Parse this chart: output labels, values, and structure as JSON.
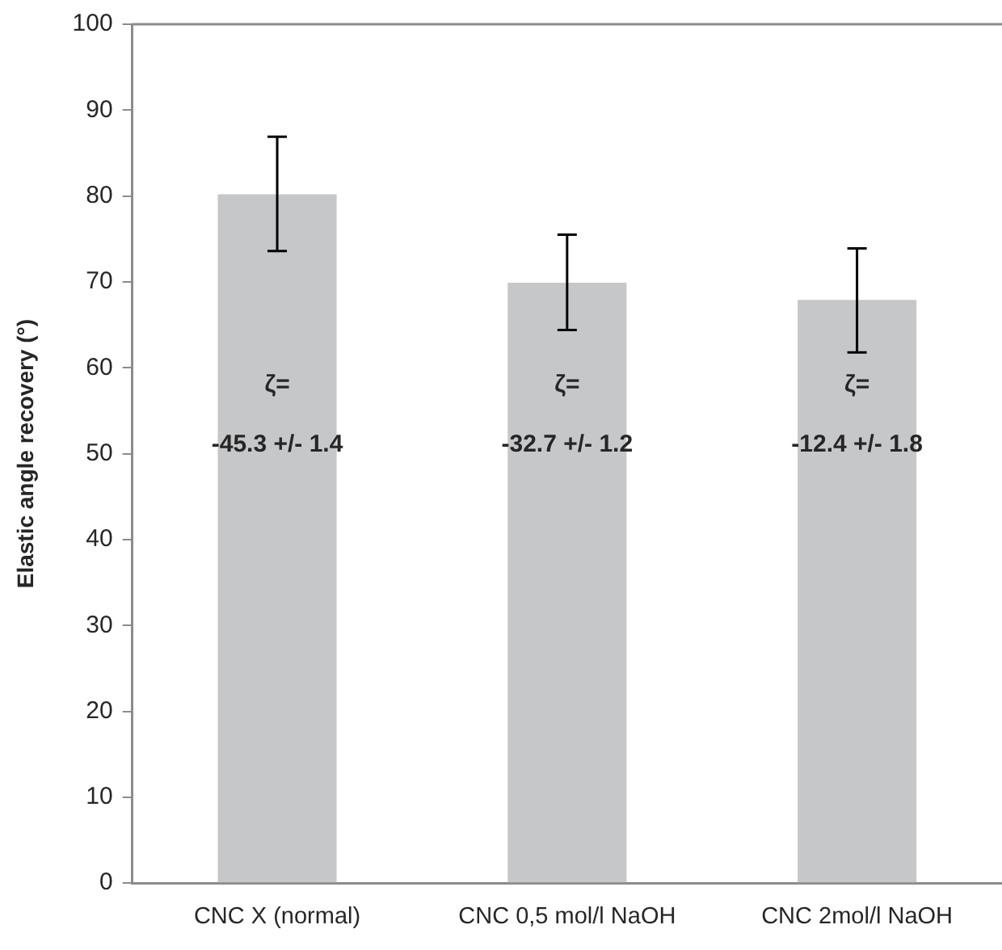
{
  "chart_data": {
    "type": "bar",
    "ylabel": "Elastic angle recovery (°)",
    "categories": [
      "CNC X (normal)",
      "CNC 0,5 mol/l NaOH",
      "CNC 2mol/l NaOH"
    ],
    "values": [
      80.2,
      69.9,
      67.9
    ],
    "color": "#c6c7c9",
    "errors": [
      [
        73.6,
        86.9
      ],
      [
        64.4,
        75.5
      ],
      [
        61.8,
        73.9
      ]
    ],
    "ylim": [
      0,
      100
    ],
    "yticks": [
      0,
      10,
      20,
      30,
      40,
      50,
      60,
      70,
      80,
      90,
      100
    ],
    "grid": false,
    "legend": false,
    "annotations": [
      "ζ=",
      "-45.3 +/- 1.4",
      "ζ=",
      "-32.7 +/- 1.2",
      "ζ=",
      "-12.4 +/- 1.8"
    ]
  }
}
